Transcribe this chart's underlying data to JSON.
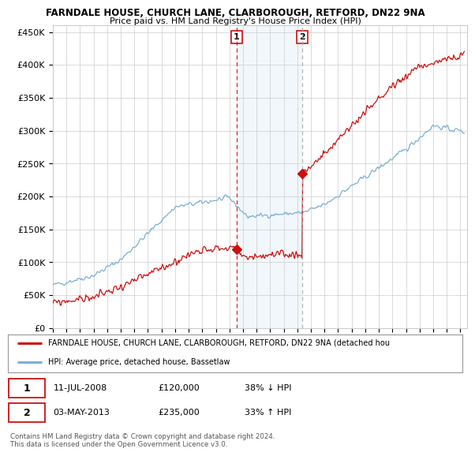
{
  "title1": "FARNDALE HOUSE, CHURCH LANE, CLARBOROUGH, RETFORD, DN22 9NA",
  "title2": "Price paid vs. HM Land Registry's House Price Index (HPI)",
  "ylabel_ticks": [
    "£0",
    "£50K",
    "£100K",
    "£150K",
    "£200K",
    "£250K",
    "£300K",
    "£350K",
    "£400K",
    "£450K"
  ],
  "ylabel_values": [
    0,
    50000,
    100000,
    150000,
    200000,
    250000,
    300000,
    350000,
    400000,
    450000
  ],
  "ylim": [
    0,
    460000
  ],
  "xlim_start": 1995.0,
  "xlim_end": 2025.5,
  "hpi_color": "#7ab0d4",
  "price_color": "#cc1111",
  "marker1_date": 2008.53,
  "marker1_price": 120000,
  "marker2_date": 2013.35,
  "marker2_price": 235000,
  "legend_line1": "FARNDALE HOUSE, CHURCH LANE, CLARBOROUGH, RETFORD, DN22 9NA (detached hou",
  "legend_line2": "HPI: Average price, detached house, Bassetlaw",
  "table_row1": [
    "1",
    "11-JUL-2008",
    "£120,000",
    "38% ↓ HPI"
  ],
  "table_row2": [
    "2",
    "03-MAY-2013",
    "£235,000",
    "33% ↑ HPI"
  ],
  "footer": "Contains HM Land Registry data © Crown copyright and database right 2024.\nThis data is licensed under the Open Government Licence v3.0.",
  "bg_color": "#ffffff",
  "grid_color": "#cccccc",
  "shaded_color": "#daeaf5"
}
